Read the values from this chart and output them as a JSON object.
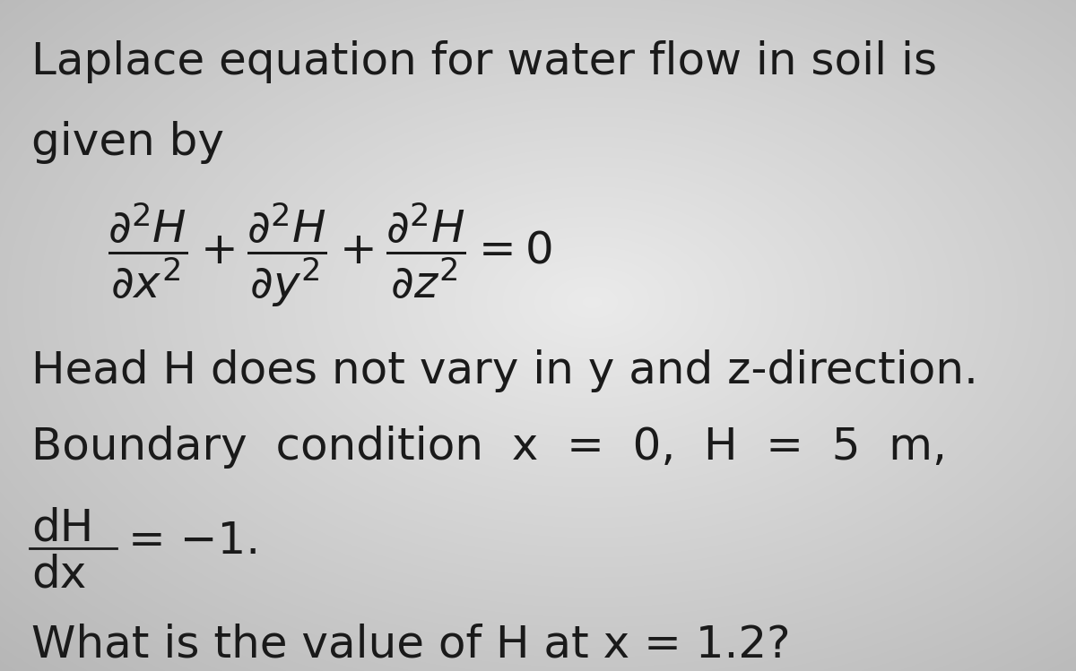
{
  "fig_width": 12.0,
  "fig_height": 7.49,
  "text_color": "#1a1a1a",
  "line1": "Laplace equation for water flow in soil is",
  "line2": "given by",
  "equation": "$\\dfrac{\\partial^2 H}{\\partial x^2} + \\dfrac{\\partial^2 H}{\\partial y^2} + \\dfrac{\\partial^2 H}{\\partial z^2} = 0$",
  "line3": "Head H does not vary in y and z-direction.",
  "line4": "Boundary  condition  x  =  0,  H  =  5  m,",
  "dH_num": "dH",
  "dH_den": "dx",
  "dH_rhs": "= −1.",
  "line5": "What is the value of H at x = 1.2?",
  "bg_center": "#e8e8e8",
  "bg_edge_tl": "#b8b8b8",
  "bg_edge_tr": "#c0c0c0",
  "bg_edge_bl": "#c0c0c0",
  "bg_edge_br": "#b0b0b0"
}
